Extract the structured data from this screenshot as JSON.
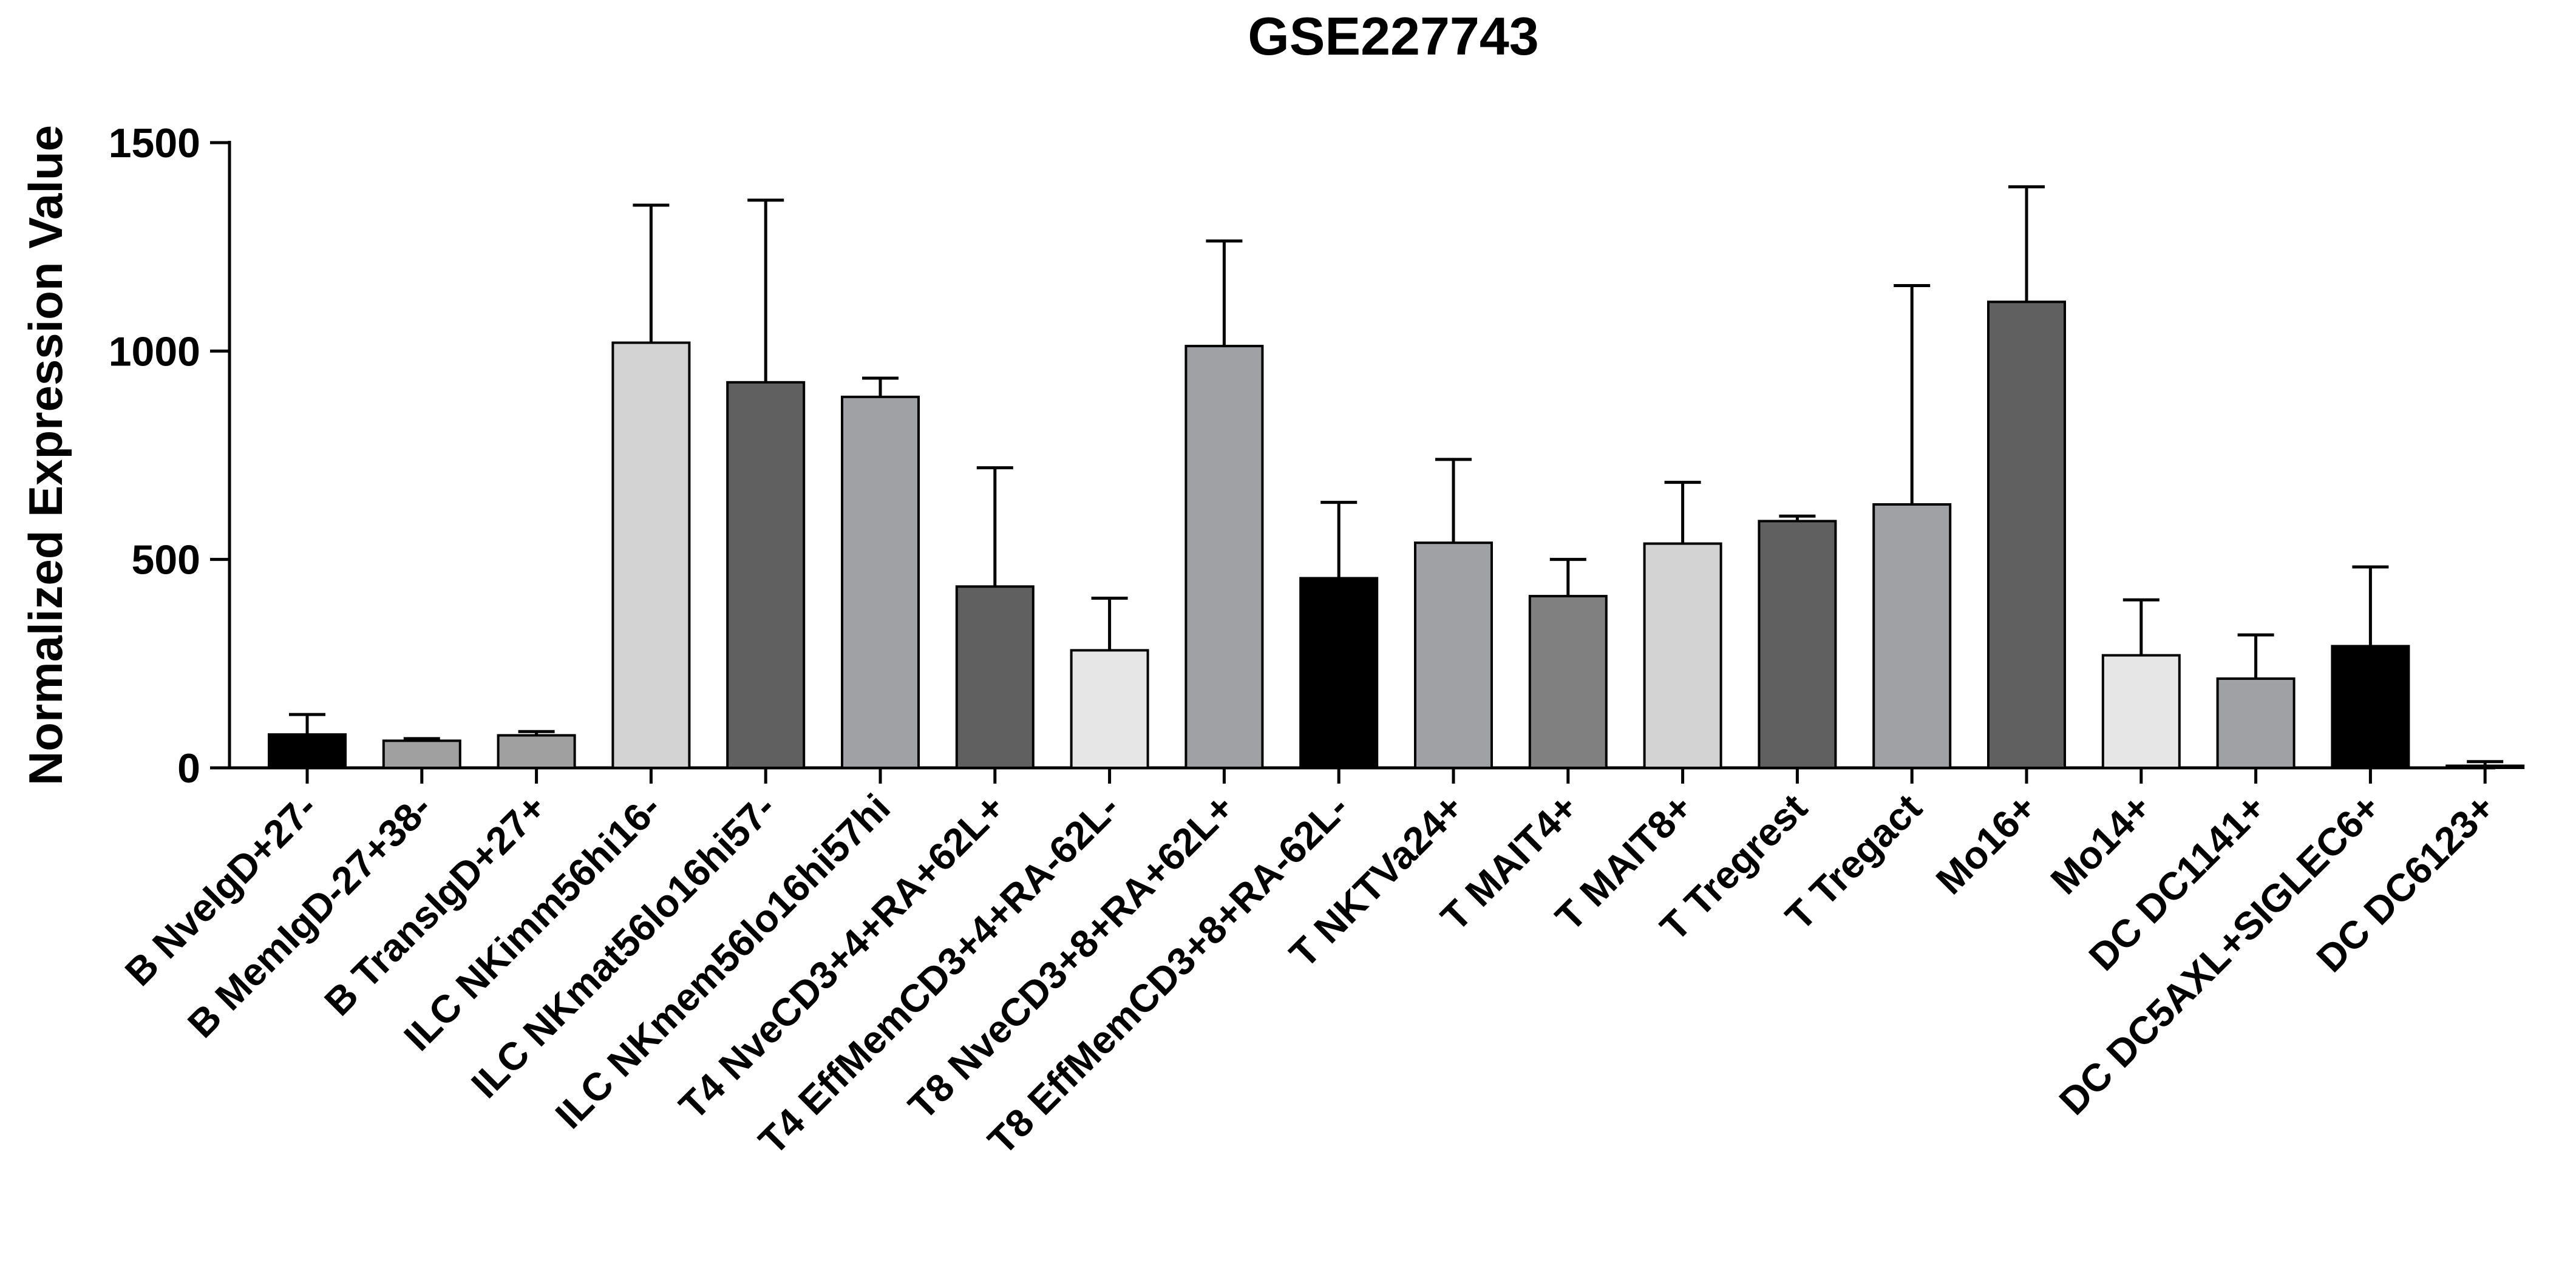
{
  "chart_data": {
    "type": "bar",
    "title": "GSE227743",
    "xlabel": "",
    "ylabel": "Normalized Expression Value",
    "ylim": [
      0,
      1500
    ],
    "yticks": [
      0,
      500,
      1000,
      1500
    ],
    "grid": false,
    "legend": "none",
    "error_bars": "upper",
    "categories": [
      "B NveIgD+27-",
      "B MemIgD-27+38-",
      "B TransIgD+27+",
      "ILC NKimm56hi16-",
      "ILC NKmat56lo16hi57-",
      "ILC NKmem56lo16hi57hi",
      "T4 NveCD3+4+RA+62L+",
      "T4 EffMemCD3+4+RA-62L-",
      "T8 NveCD3+8+RA+62L+",
      "T8 EffMemCD3+8+RA-62L-",
      "T NKTVa24+",
      "T MAIT4+",
      "T MAIT8+",
      "T Tregrest",
      "T Tregact",
      "Mo16+",
      "Mo14+",
      "DC DC1141+",
      "DC DC5AXL+SIGLEC6+",
      "DC DC6123+"
    ],
    "values": [
      80,
      65,
      78,
      1020,
      925,
      890,
      435,
      282,
      1012,
      455,
      540,
      412,
      538,
      592,
      632,
      1118,
      270,
      214,
      292,
      5
    ],
    "errors": [
      48,
      5,
      9,
      330,
      437,
      45,
      285,
      125,
      252,
      182,
      200,
      88,
      147,
      12,
      525,
      276,
      133,
      105,
      190,
      10
    ],
    "colors": [
      "#000000",
      "#a0a0a0",
      "#a0a0a0",
      "#d3d3d3",
      "#606060",
      "#a0a1a4",
      "#606060",
      "#e6e6e6",
      "#a0a1a4",
      "#000000",
      "#a0a1a4",
      "#808080",
      "#d3d3d3",
      "#606060",
      "#a0a1a4",
      "#606060",
      "#e6e6e6",
      "#a0a1a4",
      "#000000",
      "#a0a0a0"
    ]
  }
}
